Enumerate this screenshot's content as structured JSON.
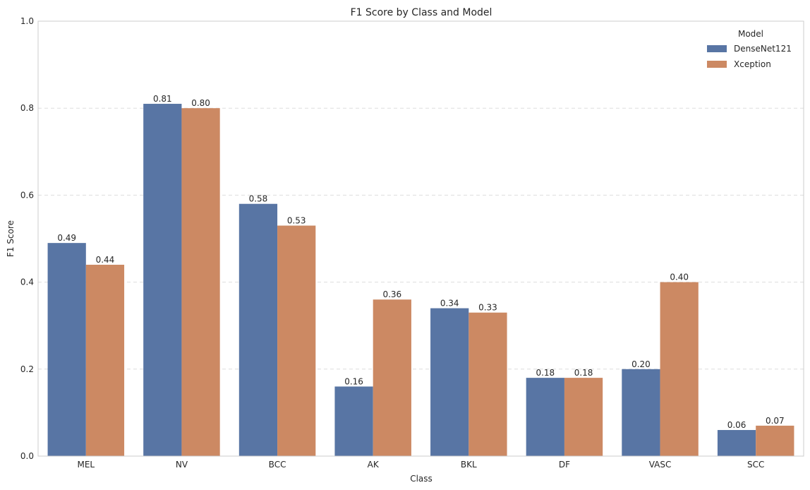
{
  "chart_data": {
    "type": "bar",
    "title": "F1 Score by Class and Model",
    "xlabel": "Class",
    "ylabel": "F1 Score",
    "ylim": [
      0,
      1.0
    ],
    "yticks": [
      "0.0",
      "0.2",
      "0.4",
      "0.6",
      "0.8",
      "1.0"
    ],
    "grid": "horizontal-dashed",
    "legend_title": "Model",
    "legend_position": "top-right",
    "categories": [
      "MEL",
      "NV",
      "BCC",
      "AK",
      "BKL",
      "DF",
      "VASC",
      "SCC"
    ],
    "series": [
      {
        "name": "DenseNet121",
        "color": "#5875a4",
        "values": [
          0.49,
          0.81,
          0.58,
          0.16,
          0.34,
          0.18,
          0.2,
          0.06
        ],
        "labels": [
          "0.49",
          "0.81",
          "0.58",
          "0.16",
          "0.34",
          "0.18",
          "0.20",
          "0.06"
        ]
      },
      {
        "name": "Xception",
        "color": "#cc8963",
        "values": [
          0.44,
          0.8,
          0.53,
          0.36,
          0.33,
          0.18,
          0.4,
          0.07
        ],
        "labels": [
          "0.44",
          "0.80",
          "0.53",
          "0.36",
          "0.33",
          "0.18",
          "0.40",
          "0.07"
        ]
      }
    ]
  }
}
